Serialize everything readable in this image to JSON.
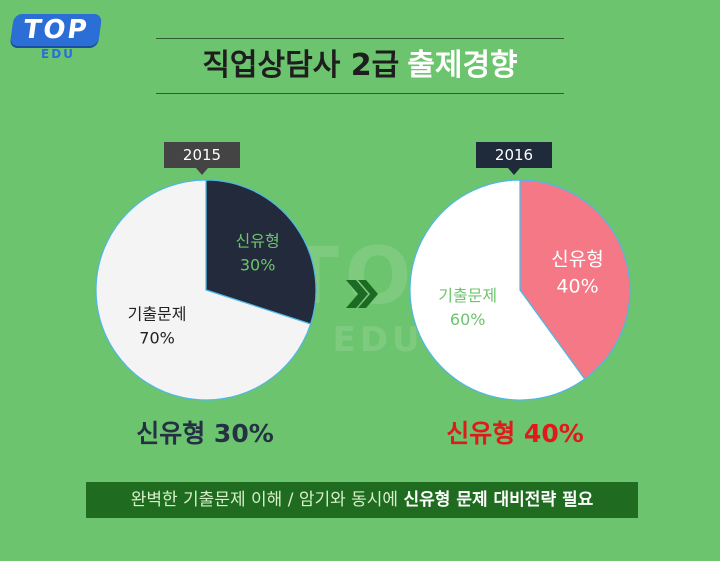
{
  "logo": {
    "top": "TOP",
    "edu": "EDU"
  },
  "title": {
    "part1": "직업상담사 2급",
    "part2": "출제경향"
  },
  "chart_data": [
    {
      "type": "pie",
      "title": "2015",
      "slices": [
        {
          "label": "신유형",
          "value": 30,
          "display": "30%",
          "color": "#232a3b",
          "text_color": "#6cc46e"
        },
        {
          "label": "기출문제",
          "value": 70,
          "display": "70%",
          "color": "#f4f4f4",
          "text_color": "#222222"
        }
      ]
    },
    {
      "type": "pie",
      "title": "2016",
      "slices": [
        {
          "label": "신유형",
          "value": 40,
          "display": "40%",
          "color": "#f47885",
          "text_color": "#ffffff"
        },
        {
          "label": "기출문제",
          "value": 60,
          "display": "60%",
          "color": "#ffffff",
          "text_color": "#6cc46e"
        }
      ]
    }
  ],
  "results": {
    "left": "신유형 30%",
    "right": "신유형 40%"
  },
  "bottom": {
    "part1": "완벽한 기출문제 이해 / 암기와 동시에",
    "part2": "신유형 문제 대비전략 필요"
  },
  "colors": {
    "background": "#6cc46e",
    "accent_red": "#e0191b",
    "logo_blue": "#2b6fd6"
  }
}
